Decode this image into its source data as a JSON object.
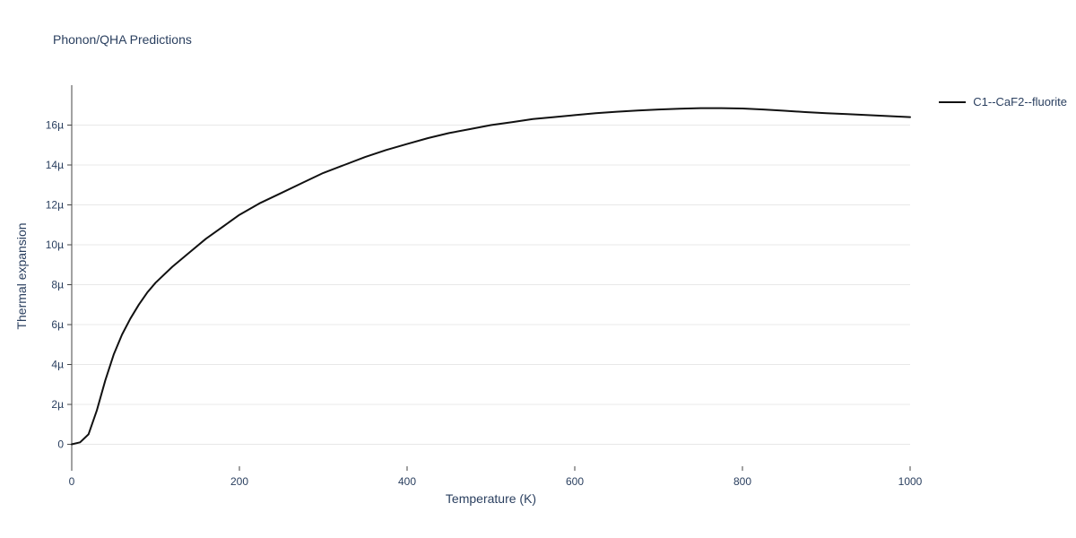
{
  "header": {
    "title": "Phonon/QHA Predictions"
  },
  "colors": {
    "background": "#ffffff",
    "title_text": "#2a3f5f",
    "tick_label": "#2a3f5f",
    "axis_label": "#2a3f5f",
    "grid": "#e8e8e8",
    "axis_line": "#444444",
    "series_line": "#111111"
  },
  "chart_data": {
    "type": "line",
    "title": "Phonon/QHA Predictions",
    "xlabel": "Temperature (K)",
    "ylabel": "Thermal expansion",
    "xlim": [
      0,
      1000
    ],
    "ylim_micro": [
      -1.1,
      18.0
    ],
    "y_unit": "micro (1e-6), tick labels use µ suffix",
    "grid": "horizontal-only",
    "legend_position": "top-right-outside",
    "xticks": {
      "values": [
        0,
        200,
        400,
        600,
        800,
        1000
      ],
      "labels": [
        "0",
        "200",
        "400",
        "600",
        "800",
        "1000"
      ]
    },
    "yticks": {
      "values": [
        0,
        2,
        4,
        6,
        8,
        10,
        12,
        14,
        16
      ],
      "labels": [
        "0",
        "2µ",
        "4µ",
        "6µ",
        "8µ",
        "10µ",
        "12µ",
        "14µ",
        "16µ"
      ]
    },
    "series": [
      {
        "name": "C1--CaF2--fluorite",
        "color": "#111111",
        "x": [
          0,
          10,
          20,
          30,
          40,
          50,
          60,
          70,
          80,
          90,
          100,
          120,
          140,
          160,
          180,
          200,
          225,
          250,
          275,
          300,
          325,
          350,
          375,
          400,
          425,
          450,
          475,
          500,
          525,
          550,
          575,
          600,
          625,
          650,
          675,
          700,
          725,
          750,
          775,
          800,
          825,
          850,
          875,
          900,
          925,
          950,
          975,
          1000
        ],
        "y_micro": [
          0.0,
          0.1,
          0.5,
          1.7,
          3.2,
          4.5,
          5.5,
          6.3,
          7.0,
          7.6,
          8.1,
          8.9,
          9.6,
          10.3,
          10.9,
          11.5,
          12.1,
          12.6,
          13.1,
          13.6,
          14.0,
          14.4,
          14.75,
          15.05,
          15.35,
          15.6,
          15.8,
          16.0,
          16.15,
          16.3,
          16.4,
          16.5,
          16.6,
          16.67,
          16.73,
          16.78,
          16.82,
          16.85,
          16.85,
          16.83,
          16.78,
          16.72,
          16.65,
          16.6,
          16.55,
          16.5,
          16.45,
          16.4
        ]
      }
    ]
  }
}
